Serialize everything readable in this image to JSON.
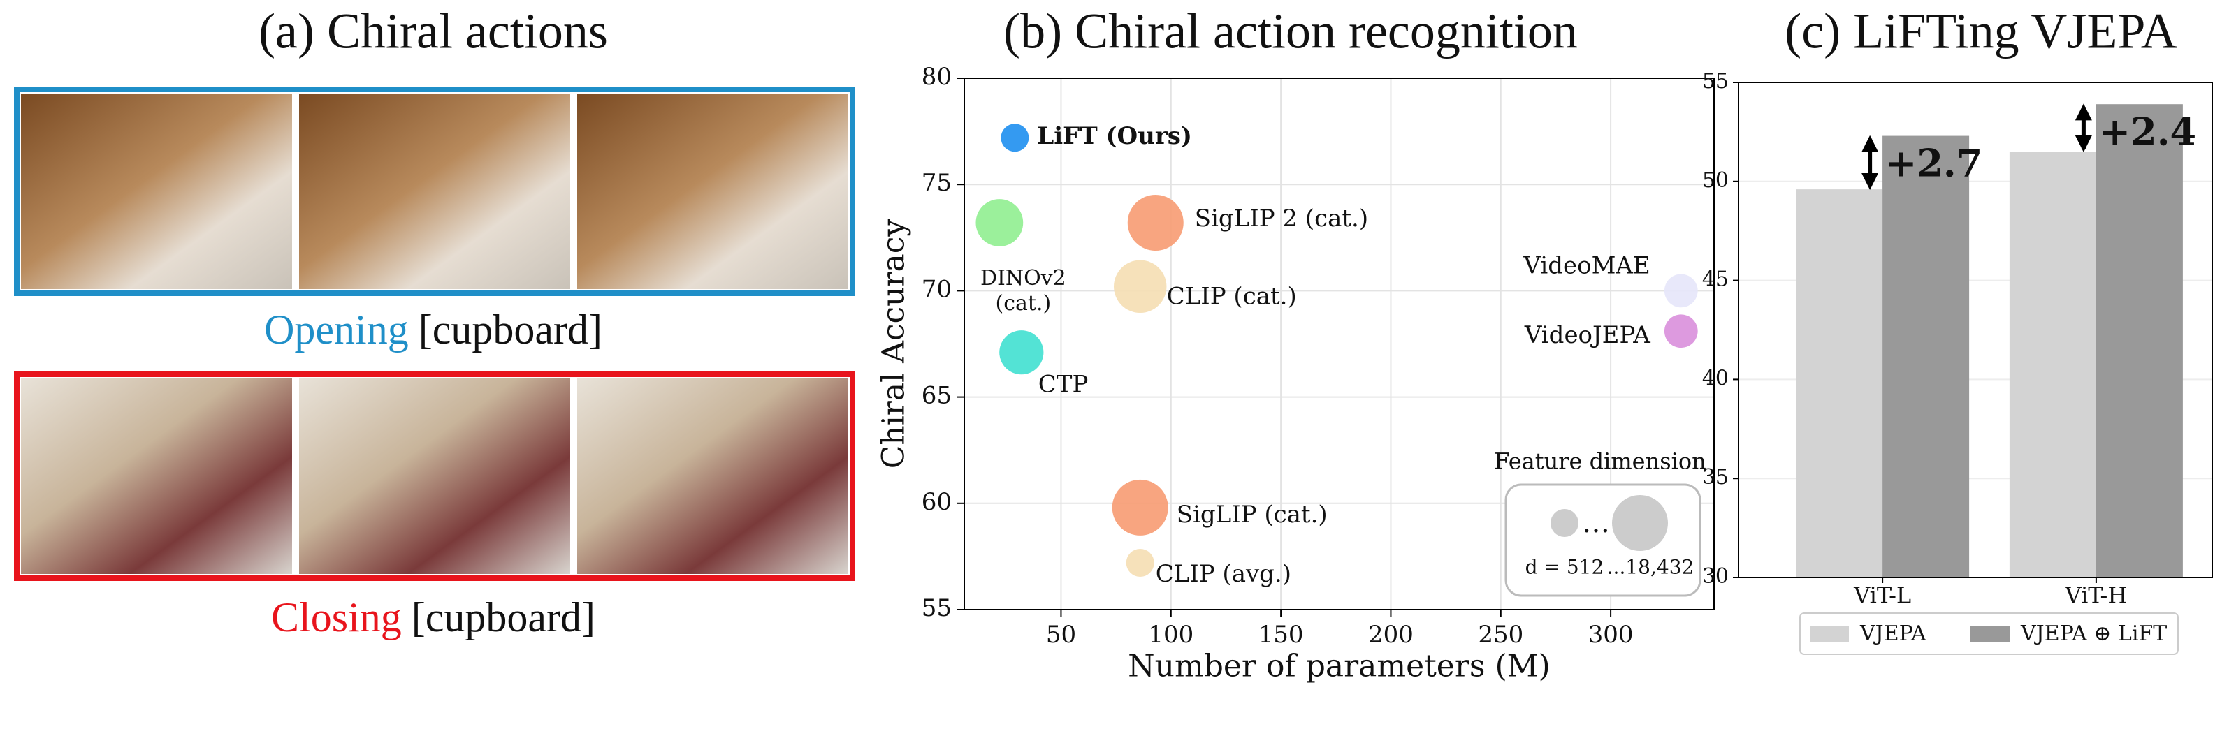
{
  "panel_a": {
    "title": "(a) Chiral actions",
    "captions": [
      {
        "action": "Opening",
        "object": "[cupboard]",
        "color": "#1f8fc8"
      },
      {
        "action": "Closing",
        "object": "[cupboard]",
        "color": "#e8141c"
      }
    ]
  },
  "chart_data": [
    {
      "type": "scatter",
      "title": "(b) Chiral action recognition",
      "x_label": "Number of parameters (M)",
      "y_label": "Chiral Accuracy",
      "xlim": [
        6,
        347
      ],
      "ylim": [
        55,
        80
      ],
      "xticks": [
        50,
        100,
        150,
        200,
        250,
        300
      ],
      "yticks": [
        55,
        60,
        65,
        70,
        75,
        80
      ],
      "grid": true,
      "series": [
        {
          "name": "LiFT (Ours)",
          "color": "#1e8ff0",
          "x": 29,
          "y": 77.2,
          "size": 512,
          "bold": true
        },
        {
          "name": "DINOv2 (cat.)",
          "color": "#90ee90",
          "x": 22,
          "y": 73.2,
          "size": 6144
        },
        {
          "name": "SigLIP 2 (cat.)",
          "color": "#f79b72",
          "x": 93,
          "y": 73.2,
          "size": 18432
        },
        {
          "name": "CLIP (cat.)",
          "color": "#f5deb3",
          "x": 86,
          "y": 70.2,
          "size": 12288
        },
        {
          "name": "VideoMAE",
          "color": "#e6e6fa",
          "x": 332,
          "y": 70.0,
          "size": 1024
        },
        {
          "name": "VideoJEPA",
          "color": "#d98fdb",
          "x": 332,
          "y": 68.1,
          "size": 1024
        },
        {
          "name": "CTP",
          "color": "#40e0d0",
          "x": 32,
          "y": 67.1,
          "size": 4096
        },
        {
          "name": "SigLIP (cat.)",
          "color": "#f79b72",
          "x": 86,
          "y": 59.8,
          "size": 18432
        },
        {
          "name": "CLIP (avg.)",
          "color": "#f5deb3",
          "x": 86,
          "y": 57.2,
          "size": 512
        }
      ],
      "size_legend": {
        "title": "Feature dimension",
        "sizes": [
          512,
          18432
        ],
        "labels": [
          "d = 512",
          "...18,432"
        ],
        "separator": "…",
        "color": "#cccccc"
      }
    },
    {
      "type": "bar",
      "title": "(c) LiFTing VJEPA",
      "categories": [
        "ViT-L",
        "ViT-H"
      ],
      "ylim": [
        30,
        55
      ],
      "yticks": [
        30,
        35,
        40,
        45,
        50,
        55
      ],
      "grid": true,
      "series": [
        {
          "name": "VJEPA",
          "color": "#d3d3d3",
          "values": [
            49.6,
            51.5
          ]
        },
        {
          "name": "VJEPA ⊕ LiFT",
          "color": "#999999",
          "values": [
            52.3,
            53.9
          ]
        }
      ],
      "annotations": [
        "+2.7",
        "+2.4"
      ],
      "legend": "lower center"
    }
  ]
}
